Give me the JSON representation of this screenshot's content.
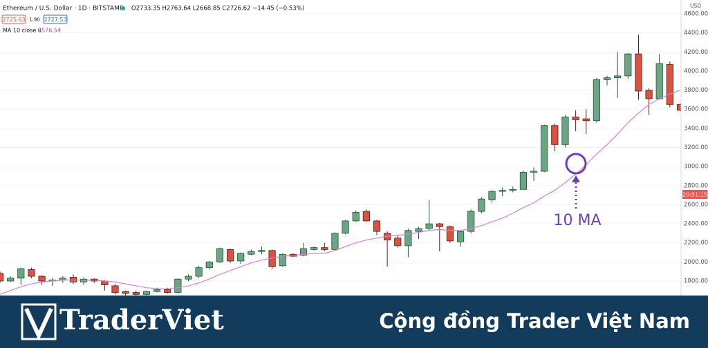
{
  "chart_data": {
    "type": "candlestick",
    "title": "Ethereum / U.S. Dollar · 1D · BITSTAMP",
    "ohlc_legend": "O2733.35 H2763.64 L2668.85 C2726.62 −14.45 (−0.53%)",
    "bid": "2725.63",
    "spread": "1.90",
    "ask": "2727.53",
    "ma_legend": "MA 10 close 0",
    "ma_value": "2576.54",
    "currency": "USD",
    "countdown": "20:51:15",
    "annotation": "10 MA",
    "up_color": "#6ba583",
    "up_border": "#225437",
    "down_color": "#d75442",
    "down_border": "#5b1a13",
    "ylim": [
      1648,
      4745
    ],
    "yticks": [
      {
        "value": 1800,
        "label": "1800.00"
      },
      {
        "value": 2000,
        "label": "2000.00"
      },
      {
        "value": 2200,
        "label": "2200.00"
      },
      {
        "value": 2400,
        "label": "2400.00"
      },
      {
        "value": 2600,
        "label": "2600.00"
      },
      {
        "value": 2800,
        "label": "2800.00"
      },
      {
        "value": 3000,
        "label": "3000.00"
      },
      {
        "value": 3200,
        "label": "3200.00"
      },
      {
        "value": 3400,
        "label": "3400.00"
      },
      {
        "value": 3600,
        "label": "3600.00"
      },
      {
        "value": 3800,
        "label": "3800.00"
      },
      {
        "value": 4000,
        "label": "4000.00"
      },
      {
        "value": 4200,
        "label": "4200.00"
      },
      {
        "value": 4400,
        "label": "4400.00"
      },
      {
        "value": 4600,
        "label": "4600.00"
      }
    ],
    "grid": true,
    "open": [
      1880,
      1800,
      1830,
      1920,
      1850,
      1800,
      1810,
      1840,
      1790,
      1820,
      1800,
      1750,
      1690,
      1680,
      1660,
      1690,
      1710,
      1680,
      1820,
      1850,
      1940,
      2000,
      2130,
      2010,
      2080,
      2110,
      2120,
      1960,
      2080,
      2070,
      2130,
      2150,
      2130,
      2300,
      2430,
      2530,
      2430,
      2300,
      2250,
      2170,
      2320,
      2350,
      2400,
      2370,
      2210,
      2320,
      2530,
      2650,
      2740,
      2750,
      2760,
      2940,
      2950,
      3430,
      3230,
      3520,
      3500,
      3480,
      3910,
      3930,
      3950,
      4180,
      3800,
      3710,
      4070,
      3650
    ],
    "high": [
      1900,
      1850,
      1940,
      1940,
      1860,
      1830,
      1850,
      1870,
      1840,
      1830,
      1810,
      1770,
      1700,
      1700,
      1700,
      1730,
      1730,
      1830,
      1870,
      1960,
      2010,
      2150,
      2140,
      2100,
      2130,
      2160,
      2130,
      2090,
      2090,
      2200,
      2160,
      2200,
      2310,
      2440,
      2540,
      2550,
      2440,
      2320,
      2280,
      2350,
      2370,
      2650,
      2410,
      2380,
      2330,
      2550,
      2680,
      2750,
      2780,
      2790,
      2960,
      2990,
      3440,
      3450,
      3540,
      3590,
      3600,
      3930,
      3950,
      4200,
      4190,
      4380,
      3820,
      4180,
      4100,
      3660
    ],
    "low": [
      1780,
      1790,
      1760,
      1830,
      1760,
      1750,
      1780,
      1770,
      1760,
      1780,
      1700,
      1660,
      1650,
      1650,
      1650,
      1680,
      1670,
      1670,
      1800,
      1830,
      1920,
      1990,
      1990,
      1980,
      2070,
      2080,
      1930,
      1950,
      2050,
      2060,
      2120,
      2110,
      2120,
      2290,
      2420,
      2420,
      2280,
      1950,
      2150,
      2050,
      2240,
      2330,
      2110,
      2200,
      2160,
      2300,
      2510,
      2620,
      2690,
      2730,
      2760,
      2850,
      2940,
      3160,
      3200,
      3370,
      3340,
      3460,
      3850,
      3720,
      3920,
      3700,
      3540,
      3700,
      3620,
      3580
    ],
    "close": [
      1800,
      1830,
      1930,
      1850,
      1800,
      1810,
      1830,
      1790,
      1820,
      1800,
      1760,
      1680,
      1670,
      1660,
      1690,
      1710,
      1680,
      1820,
      1850,
      1940,
      2000,
      2140,
      2010,
      2090,
      2110,
      2120,
      1950,
      2080,
      2060,
      2140,
      2150,
      2130,
      2300,
      2430,
      2520,
      2430,
      2320,
      2230,
      2170,
      2330,
      2350,
      2400,
      2370,
      2220,
      2320,
      2530,
      2660,
      2740,
      2750,
      2760,
      2940,
      2950,
      3430,
      3230,
      3520,
      3490,
      3480,
      3910,
      3930,
      3950,
      4180,
      3790,
      3710,
      4080,
      3650,
      3590
    ],
    "ma": {
      "name": "MA 10",
      "color": "#d77fd9",
      "values": [
        1660,
        1700,
        1740,
        1770,
        1790,
        1800,
        1810,
        1810,
        1810,
        1810,
        1800,
        1790,
        1770,
        1750,
        1730,
        1720,
        1720,
        1730,
        1750,
        1780,
        1820,
        1870,
        1910,
        1950,
        1990,
        2020,
        2040,
        2060,
        2070,
        2080,
        2090,
        2090,
        2120,
        2160,
        2200,
        2230,
        2250,
        2270,
        2280,
        2290,
        2310,
        2330,
        2340,
        2330,
        2330,
        2350,
        2380,
        2420,
        2460,
        2510,
        2570,
        2620,
        2690,
        2750,
        2830,
        2920,
        3020,
        3130,
        3230,
        3340,
        3460,
        3560,
        3650,
        3710,
        3760,
        3800
      ]
    },
    "annotation_color": "#6a3fc0"
  },
  "footer": {
    "brand": "TraderViet",
    "tagline": "Cộng đồng Trader Việt Nam"
  }
}
